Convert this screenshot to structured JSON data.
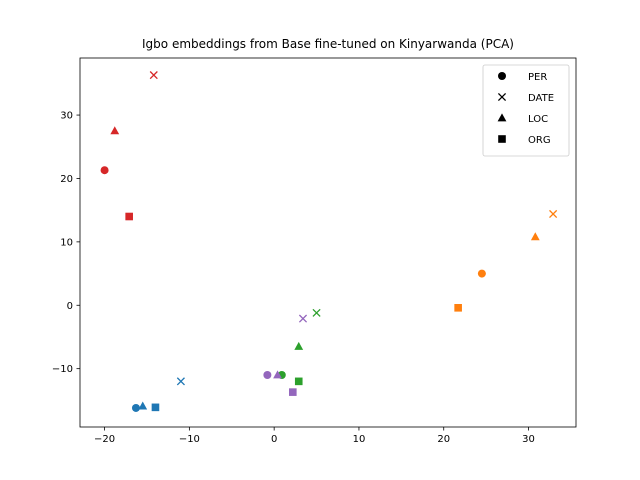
{
  "chart_data": {
    "type": "scatter",
    "title": "Igbo embeddings from Base fine-tuned on Kinyarwanda (PCA)",
    "xlabel": "",
    "ylabel": "",
    "xlim": [
      -22.9,
      35.6
    ],
    "ylim": [
      -19.2,
      39.0
    ],
    "x_ticks": [
      -20,
      -10,
      0,
      10,
      20,
      30
    ],
    "y_ticks": [
      -10,
      0,
      10,
      20,
      30
    ],
    "grid": false,
    "legend_placement": "top-right",
    "legend": [
      {
        "label": "PER",
        "marker": "circle"
      },
      {
        "label": "DATE",
        "marker": "x"
      },
      {
        "label": "LOC",
        "marker": "triangle"
      },
      {
        "label": "ORG",
        "marker": "square"
      }
    ],
    "groups": [
      {
        "color": "#1f77b4",
        "points": [
          {
            "marker": "circle",
            "x": -16.3,
            "y": -16.2
          },
          {
            "marker": "x",
            "x": -11.0,
            "y": -12.0
          },
          {
            "marker": "triangle",
            "x": -15.5,
            "y": -15.9
          },
          {
            "marker": "square",
            "x": -14.0,
            "y": -16.1
          }
        ]
      },
      {
        "color": "#ff7f0e",
        "points": [
          {
            "marker": "circle",
            "x": 24.5,
            "y": 5.0
          },
          {
            "marker": "x",
            "x": 32.9,
            "y": 14.4
          },
          {
            "marker": "triangle",
            "x": 30.8,
            "y": 10.8
          },
          {
            "marker": "square",
            "x": 21.7,
            "y": -0.4
          }
        ]
      },
      {
        "color": "#2ca02c",
        "points": [
          {
            "marker": "circle",
            "x": 0.9,
            "y": -11.0
          },
          {
            "marker": "x",
            "x": 5.0,
            "y": -1.2
          },
          {
            "marker": "triangle",
            "x": 2.9,
            "y": -6.5
          },
          {
            "marker": "square",
            "x": 2.9,
            "y": -12.0
          }
        ]
      },
      {
        "color": "#d62728",
        "points": [
          {
            "marker": "circle",
            "x": -20.0,
            "y": 21.3
          },
          {
            "marker": "x",
            "x": -14.2,
            "y": 36.3
          },
          {
            "marker": "triangle",
            "x": -18.8,
            "y": 27.5
          },
          {
            "marker": "square",
            "x": -17.1,
            "y": 14.0
          }
        ]
      },
      {
        "color": "#9467bd",
        "points": [
          {
            "marker": "circle",
            "x": -0.8,
            "y": -11.0
          },
          {
            "marker": "x",
            "x": 3.4,
            "y": -2.1
          },
          {
            "marker": "triangle",
            "x": 0.4,
            "y": -11.0
          },
          {
            "marker": "square",
            "x": 2.2,
            "y": -13.7
          }
        ]
      }
    ]
  }
}
